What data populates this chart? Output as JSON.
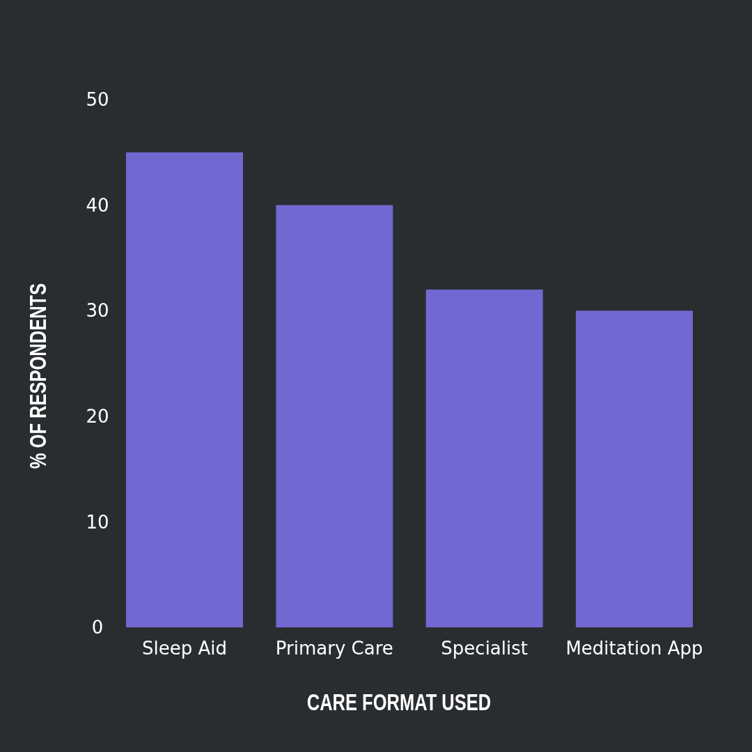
{
  "chart_data": {
    "type": "bar",
    "xlabel": "CARE FORMAT USED",
    "ylabel": "% OF RESPONDENTS",
    "categories": [
      "Sleep Aid",
      "Primary Care",
      "Specialist",
      "Meditation App"
    ],
    "values": [
      45,
      40,
      32,
      30
    ],
    "color": "#7169d1",
    "ylim": [
      0,
      50
    ],
    "yticks": [
      0,
      10,
      20,
      30,
      40,
      50
    ]
  }
}
